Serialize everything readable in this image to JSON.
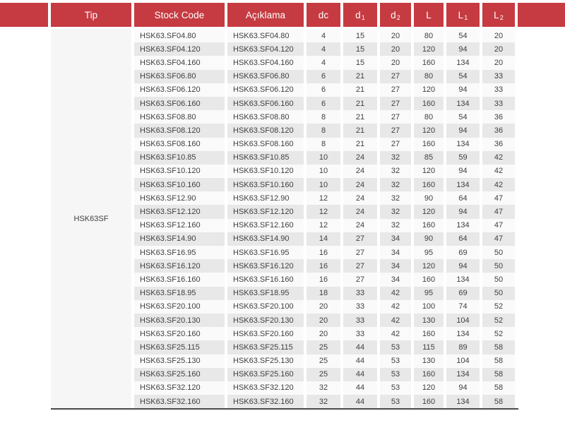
{
  "table": {
    "tip_group": "HSK63SF",
    "header": {
      "cols": [
        {
          "label": "Tip"
        },
        {
          "label": "Stock Code"
        },
        {
          "label": "Açıklama"
        },
        {
          "label": "dc"
        },
        {
          "label": "d",
          "sub": "1"
        },
        {
          "label": "d",
          "sub": "2"
        },
        {
          "label": "L"
        },
        {
          "label": "L",
          "sub": "1"
        },
        {
          "label": "L",
          "sub": "2"
        }
      ]
    },
    "rows": [
      {
        "stock_code": "HSK63.SF04.80",
        "aciklama": "HSK63.SF04.80",
        "dc": 4,
        "d1": 15,
        "d2": 20,
        "L": 80,
        "L1": 54,
        "L2": 20
      },
      {
        "stock_code": "HSK63.SF04.120",
        "aciklama": "HSK63.SF04.120",
        "dc": 4,
        "d1": 15,
        "d2": 20,
        "L": 120,
        "L1": 94,
        "L2": 20
      },
      {
        "stock_code": "HSK63.SF04.160",
        "aciklama": "HSK63.SF04.160",
        "dc": 4,
        "d1": 15,
        "d2": 20,
        "L": 160,
        "L1": 134,
        "L2": 20
      },
      {
        "stock_code": "HSK63.SF06.80",
        "aciklama": "HSK63.SF06.80",
        "dc": 6,
        "d1": 21,
        "d2": 27,
        "L": 80,
        "L1": 54,
        "L2": 33
      },
      {
        "stock_code": "HSK63.SF06.120",
        "aciklama": "HSK63.SF06.120",
        "dc": 6,
        "d1": 21,
        "d2": 27,
        "L": 120,
        "L1": 94,
        "L2": 33
      },
      {
        "stock_code": "HSK63.SF06.160",
        "aciklama": "HSK63.SF06.160",
        "dc": 6,
        "d1": 21,
        "d2": 27,
        "L": 160,
        "L1": 134,
        "L2": 33
      },
      {
        "stock_code": "HSK63.SF08.80",
        "aciklama": "HSK63.SF08.80",
        "dc": 8,
        "d1": 21,
        "d2": 27,
        "L": 80,
        "L1": 54,
        "L2": 36
      },
      {
        "stock_code": "HSK63.SF08.120",
        "aciklama": "HSK63.SF08.120",
        "dc": 8,
        "d1": 21,
        "d2": 27,
        "L": 120,
        "L1": 94,
        "L2": 36
      },
      {
        "stock_code": "HSK63.SF08.160",
        "aciklama": "HSK63.SF08.160",
        "dc": 8,
        "d1": 21,
        "d2": 27,
        "L": 160,
        "L1": 134,
        "L2": 36
      },
      {
        "stock_code": "HSK63.SF10.85",
        "aciklama": "HSK63.SF10.85",
        "dc": 10,
        "d1": 24,
        "d2": 32,
        "L": 85,
        "L1": 59,
        "L2": 42
      },
      {
        "stock_code": "HSK63.SF10.120",
        "aciklama": "HSK63.SF10.120",
        "dc": 10,
        "d1": 24,
        "d2": 32,
        "L": 120,
        "L1": 94,
        "L2": 42
      },
      {
        "stock_code": "HSK63.SF10.160",
        "aciklama": "HSK63.SF10.160",
        "dc": 10,
        "d1": 24,
        "d2": 32,
        "L": 160,
        "L1": 134,
        "L2": 42
      },
      {
        "stock_code": "HSK63.SF12.90",
        "aciklama": "HSK63.SF12.90",
        "dc": 12,
        "d1": 24,
        "d2": 32,
        "L": 90,
        "L1": 64,
        "L2": 47
      },
      {
        "stock_code": "HSK63.SF12.120",
        "aciklama": "HSK63.SF12.120",
        "dc": 12,
        "d1": 24,
        "d2": 32,
        "L": 120,
        "L1": 94,
        "L2": 47
      },
      {
        "stock_code": "HSK63.SF12.160",
        "aciklama": "HSK63.SF12.160",
        "dc": 12,
        "d1": 24,
        "d2": 32,
        "L": 160,
        "L1": 134,
        "L2": 47
      },
      {
        "stock_code": "HSK63.SF14.90",
        "aciklama": "HSK63.SF14.90",
        "dc": 14,
        "d1": 27,
        "d2": 34,
        "L": 90,
        "L1": 64,
        "L2": 47
      },
      {
        "stock_code": "HSK63.SF16.95",
        "aciklama": "HSK63.SF16.95",
        "dc": 16,
        "d1": 27,
        "d2": 34,
        "L": 95,
        "L1": 69,
        "L2": 50
      },
      {
        "stock_code": "HSK63.SF16.120",
        "aciklama": "HSK63.SF16.120",
        "dc": 16,
        "d1": 27,
        "d2": 34,
        "L": 120,
        "L1": 94,
        "L2": 50
      },
      {
        "stock_code": "HSK63.SF16.160",
        "aciklama": "HSK63.SF16.160",
        "dc": 16,
        "d1": 27,
        "d2": 34,
        "L": 160,
        "L1": 134,
        "L2": 50
      },
      {
        "stock_code": "HSK63.SF18.95",
        "aciklama": "HSK63.SF18.95",
        "dc": 18,
        "d1": 33,
        "d2": 42,
        "L": 95,
        "L1": 69,
        "L2": 50
      },
      {
        "stock_code": "HSK63.SF20.100",
        "aciklama": "HSK63.SF20.100",
        "dc": 20,
        "d1": 33,
        "d2": 42,
        "L": 100,
        "L1": 74,
        "L2": 52
      },
      {
        "stock_code": "HSK63.SF20.130",
        "aciklama": "HSK63.SF20.130",
        "dc": 20,
        "d1": 33,
        "d2": 42,
        "L": 130,
        "L1": 104,
        "L2": 52
      },
      {
        "stock_code": "HSK63.SF20.160",
        "aciklama": "HSK63.SF20.160",
        "dc": 20,
        "d1": 33,
        "d2": 42,
        "L": 160,
        "L1": 134,
        "L2": 52
      },
      {
        "stock_code": "HSK63.SF25.115",
        "aciklama": "HSK63.SF25.115",
        "dc": 25,
        "d1": 44,
        "d2": 53,
        "L": 115,
        "L1": 89,
        "L2": 58
      },
      {
        "stock_code": "HSK63.SF25.130",
        "aciklama": "HSK63.SF25.130",
        "dc": 25,
        "d1": 44,
        "d2": 53,
        "L": 130,
        "L1": 104,
        "L2": 58
      },
      {
        "stock_code": "HSK63.SF25.160",
        "aciklama": "HSK63.SF25.160",
        "dc": 25,
        "d1": 44,
        "d2": 53,
        "L": 160,
        "L1": 134,
        "L2": 58
      },
      {
        "stock_code": "HSK63.SF32.120",
        "aciklama": "HSK63.SF32.120",
        "dc": 32,
        "d1": 44,
        "d2": 53,
        "L": 120,
        "L1": 94,
        "L2": 58
      },
      {
        "stock_code": "HSK63.SF32.160",
        "aciklama": "HSK63.SF32.160",
        "dc": 32,
        "d1": 44,
        "d2": 53,
        "L": 160,
        "L1": 134,
        "L2": 58
      }
    ]
  },
  "colors": {
    "header_bg": "#c53b41",
    "header_text": "#ffffff",
    "row_base": "#fafafa",
    "row_alt": "#e8e8e8",
    "tip_bg": "#f6f6f6",
    "text": "#3f3f3f",
    "bottom_border": "#4a4a4a"
  }
}
